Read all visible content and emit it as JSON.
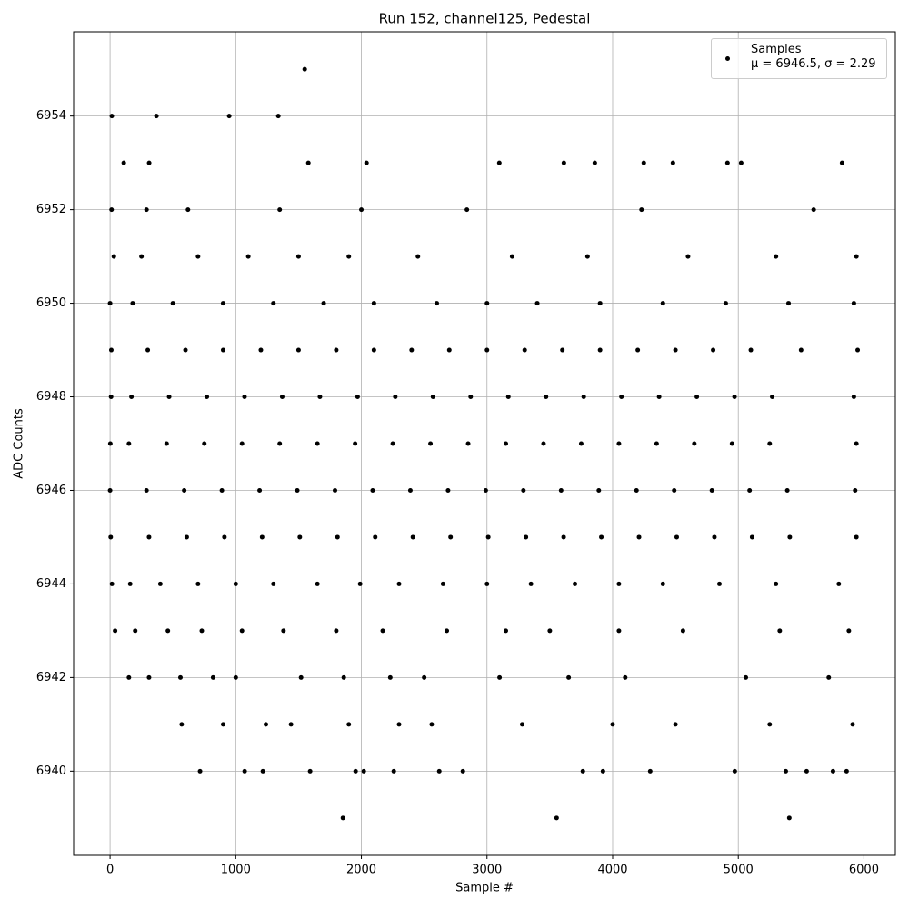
{
  "chart_data": {
    "type": "scatter",
    "title": "Run 152, channel125, Pedestal",
    "xlabel": "Sample #",
    "ylabel": "ADC Counts",
    "xlim": [
      -290,
      6250
    ],
    "ylim": [
      6938.2,
      6955.8
    ],
    "xticks": [
      0,
      1000,
      2000,
      3000,
      4000,
      5000,
      6000
    ],
    "yticks": [
      6940,
      6942,
      6944,
      6946,
      6948,
      6950,
      6952,
      6954
    ],
    "grid": true,
    "legend": "upper right",
    "series": [
      {
        "name": "Samples\nμ = 6946.5, σ = 2.29",
        "color": "#000000",
        "x": [
          1549,
          14,
          369,
          948,
          1339,
          109,
          311,
          1578,
          2041,
          3098,
          3612,
          3858,
          4248,
          4480,
          4914,
          5023,
          5826,
          1853,
          3554,
          5406,
          716,
          1071,
          1216,
          1592,
          1954,
          2019,
          2258,
          2620,
          2808,
          3763,
          3923,
          4299,
          4972,
          5378,
          5544,
          5754,
          5862,
          570,
          900,
          1240,
          1440,
          1900,
          2300,
          2560,
          3280,
          4000,
          4500,
          5250,
          5910,
          150,
          310,
          560,
          820,
          1000,
          1520,
          1860,
          2230,
          2500,
          3100,
          3650,
          4100,
          5060,
          5720,
          40,
          200,
          460,
          730,
          1050,
          1380,
          1800,
          2170,
          2680,
          3150,
          3500,
          4050,
          4560,
          5330,
          5880,
          15,
          160,
          400,
          700,
          1000,
          1300,
          1650,
          1990,
          2300,
          2650,
          3000,
          3350,
          3700,
          4050,
          4400,
          4850,
          5300,
          5800,
          5,
          310,
          610,
          910,
          1210,
          1510,
          1810,
          2110,
          2410,
          2710,
          3010,
          3310,
          3610,
          3910,
          4210,
          4510,
          4810,
          5110,
          5410,
          5940,
          0,
          290,
          590,
          890,
          1190,
          1490,
          1790,
          2090,
          2390,
          2690,
          2990,
          3290,
          3590,
          3890,
          4190,
          4490,
          4790,
          5090,
          5390,
          5930,
          2,
          150,
          450,
          750,
          1050,
          1350,
          1650,
          1950,
          2250,
          2550,
          2850,
          3150,
          3450,
          3750,
          4050,
          4350,
          4650,
          4950,
          5250,
          5940,
          8,
          170,
          470,
          770,
          1070,
          1370,
          1670,
          1970,
          2270,
          2570,
          2870,
          3170,
          3470,
          3770,
          4070,
          4370,
          4670,
          4970,
          5270,
          5920,
          10,
          300,
          600,
          900,
          1200,
          1500,
          1800,
          2100,
          2400,
          2700,
          3000,
          3300,
          3600,
          3900,
          4200,
          4500,
          4800,
          5100,
          5500,
          5950,
          0,
          180,
          500,
          900,
          1300,
          1700,
          2100,
          2600,
          3000,
          3400,
          3900,
          4400,
          4900,
          5400,
          5920,
          30,
          250,
          700,
          1100,
          1500,
          1900,
          2450,
          3200,
          3800,
          4600,
          5300,
          5940,
          12,
          290,
          620,
          1350,
          2000,
          2840,
          4230,
          5600
        ],
        "values": [
          6955,
          6954,
          6954,
          6954,
          6954,
          6953,
          6953,
          6953,
          6953,
          6953,
          6953,
          6953,
          6953,
          6953,
          6953,
          6953,
          6953,
          6939,
          6939,
          6939,
          6940,
          6940,
          6940,
          6940,
          6940,
          6940,
          6940,
          6940,
          6940,
          6940,
          6940,
          6940,
          6940,
          6940,
          6940,
          6940,
          6940,
          6941,
          6941,
          6941,
          6941,
          6941,
          6941,
          6941,
          6941,
          6941,
          6941,
          6941,
          6941,
          6942,
          6942,
          6942,
          6942,
          6942,
          6942,
          6942,
          6942,
          6942,
          6942,
          6942,
          6942,
          6942,
          6942,
          6943,
          6943,
          6943,
          6943,
          6943,
          6943,
          6943,
          6943,
          6943,
          6943,
          6943,
          6943,
          6943,
          6943,
          6943,
          6944,
          6944,
          6944,
          6944,
          6944,
          6944,
          6944,
          6944,
          6944,
          6944,
          6944,
          6944,
          6944,
          6944,
          6944,
          6944,
          6944,
          6944,
          6945,
          6945,
          6945,
          6945,
          6945,
          6945,
          6945,
          6945,
          6945,
          6945,
          6945,
          6945,
          6945,
          6945,
          6945,
          6945,
          6945,
          6945,
          6945,
          6945,
          6946,
          6946,
          6946,
          6946,
          6946,
          6946,
          6946,
          6946,
          6946,
          6946,
          6946,
          6946,
          6946,
          6946,
          6946,
          6946,
          6946,
          6946,
          6946,
          6946,
          6947,
          6947,
          6947,
          6947,
          6947,
          6947,
          6947,
          6947,
          6947,
          6947,
          6947,
          6947,
          6947,
          6947,
          6947,
          6947,
          6947,
          6947,
          6947,
          6947,
          6948,
          6948,
          6948,
          6948,
          6948,
          6948,
          6948,
          6948,
          6948,
          6948,
          6948,
          6948,
          6948,
          6948,
          6948,
          6948,
          6948,
          6948,
          6948,
          6948,
          6949,
          6949,
          6949,
          6949,
          6949,
          6949,
          6949,
          6949,
          6949,
          6949,
          6949,
          6949,
          6949,
          6949,
          6949,
          6949,
          6949,
          6949,
          6949,
          6949,
          6950,
          6950,
          6950,
          6950,
          6950,
          6950,
          6950,
          6950,
          6950,
          6950,
          6950,
          6950,
          6950,
          6950,
          6950,
          6951,
          6951,
          6951,
          6951,
          6951,
          6951,
          6951,
          6951,
          6951,
          6951,
          6951,
          6951,
          6952,
          6952,
          6952,
          6952,
          6952,
          6952,
          6952,
          6952
        ]
      }
    ]
  }
}
